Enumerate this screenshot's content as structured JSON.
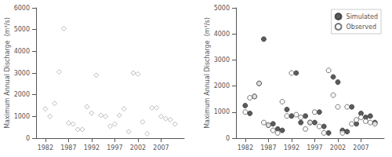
{
  "chart_data": [
    {
      "type": "scatter",
      "x": [
        1982,
        1983,
        1984,
        1985,
        1986,
        1987,
        1988,
        1989,
        1990,
        1991,
        1992,
        1993,
        1994,
        1995,
        1996,
        1997,
        1998,
        1999,
        2000,
        2001,
        2002,
        2003,
        2004,
        2005,
        2006,
        2007,
        2008,
        2009,
        2010
      ],
      "values": [
        1350,
        1000,
        1600,
        3050,
        5050,
        700,
        650,
        400,
        400,
        1450,
        1150,
        2900,
        1050,
        1000,
        550,
        650,
        1050,
        1350,
        300,
        3000,
        2950,
        750,
        200,
        1400,
        1400,
        1000,
        900,
        850,
        650
      ],
      "color": "#aaaaaa",
      "marker": "open_diamond",
      "ylabel": "Maximum Annual Discharge  (m³/s)",
      "xlim": [
        1980,
        2012
      ],
      "xticks": [
        1982,
        1987,
        1992,
        1997,
        2002,
        2007
      ],
      "ylim": [
        0,
        6000
      ],
      "yticks": [
        0,
        1000,
        2000,
        3000,
        4000,
        5000,
        6000
      ],
      "grid": false
    },
    {
      "type": "scatter",
      "x": [
        1982,
        1983,
        1984,
        1985,
        1986,
        1987,
        1988,
        1989,
        1990,
        1991,
        1992,
        1993,
        1994,
        1995,
        1996,
        1997,
        1998,
        1999,
        2000,
        2001,
        2002,
        2003,
        2004,
        2005,
        2006,
        2007,
        2008,
        2009,
        2010
      ],
      "series": [
        {
          "name": "Simulated",
          "color": "#333333",
          "marker": "circle",
          "values": [
            1250,
            950,
            1600,
            2100,
            3800,
            500,
            550,
            350,
            300,
            1100,
            850,
            2500,
            600,
            850,
            600,
            600,
            1000,
            450,
            200,
            2350,
            2150,
            300,
            250,
            1200,
            550,
            950,
            800,
            850,
            600
          ]
        },
        {
          "name": "Observed",
          "color": "#555555",
          "marker": "open_circle",
          "values": [
            1000,
            1550,
            1600,
            2100,
            600,
            500,
            300,
            200,
            1400,
            850,
            2500,
            900,
            800,
            350,
            600,
            1000,
            450,
            200,
            2600,
            1650,
            1200,
            200,
            1200,
            550,
            700,
            800,
            650,
            600,
            550
          ]
        }
      ],
      "ylabel": "Maximum Annual Discharge  (m³/s)",
      "xlim": [
        1980,
        2012
      ],
      "xticks": [
        1982,
        1987,
        1992,
        1997,
        2002,
        2007
      ],
      "ylim": [
        0,
        5000
      ],
      "yticks": [
        0,
        1000,
        2000,
        3000,
        4000,
        5000
      ],
      "grid": false,
      "legend": "upper right"
    }
  ]
}
